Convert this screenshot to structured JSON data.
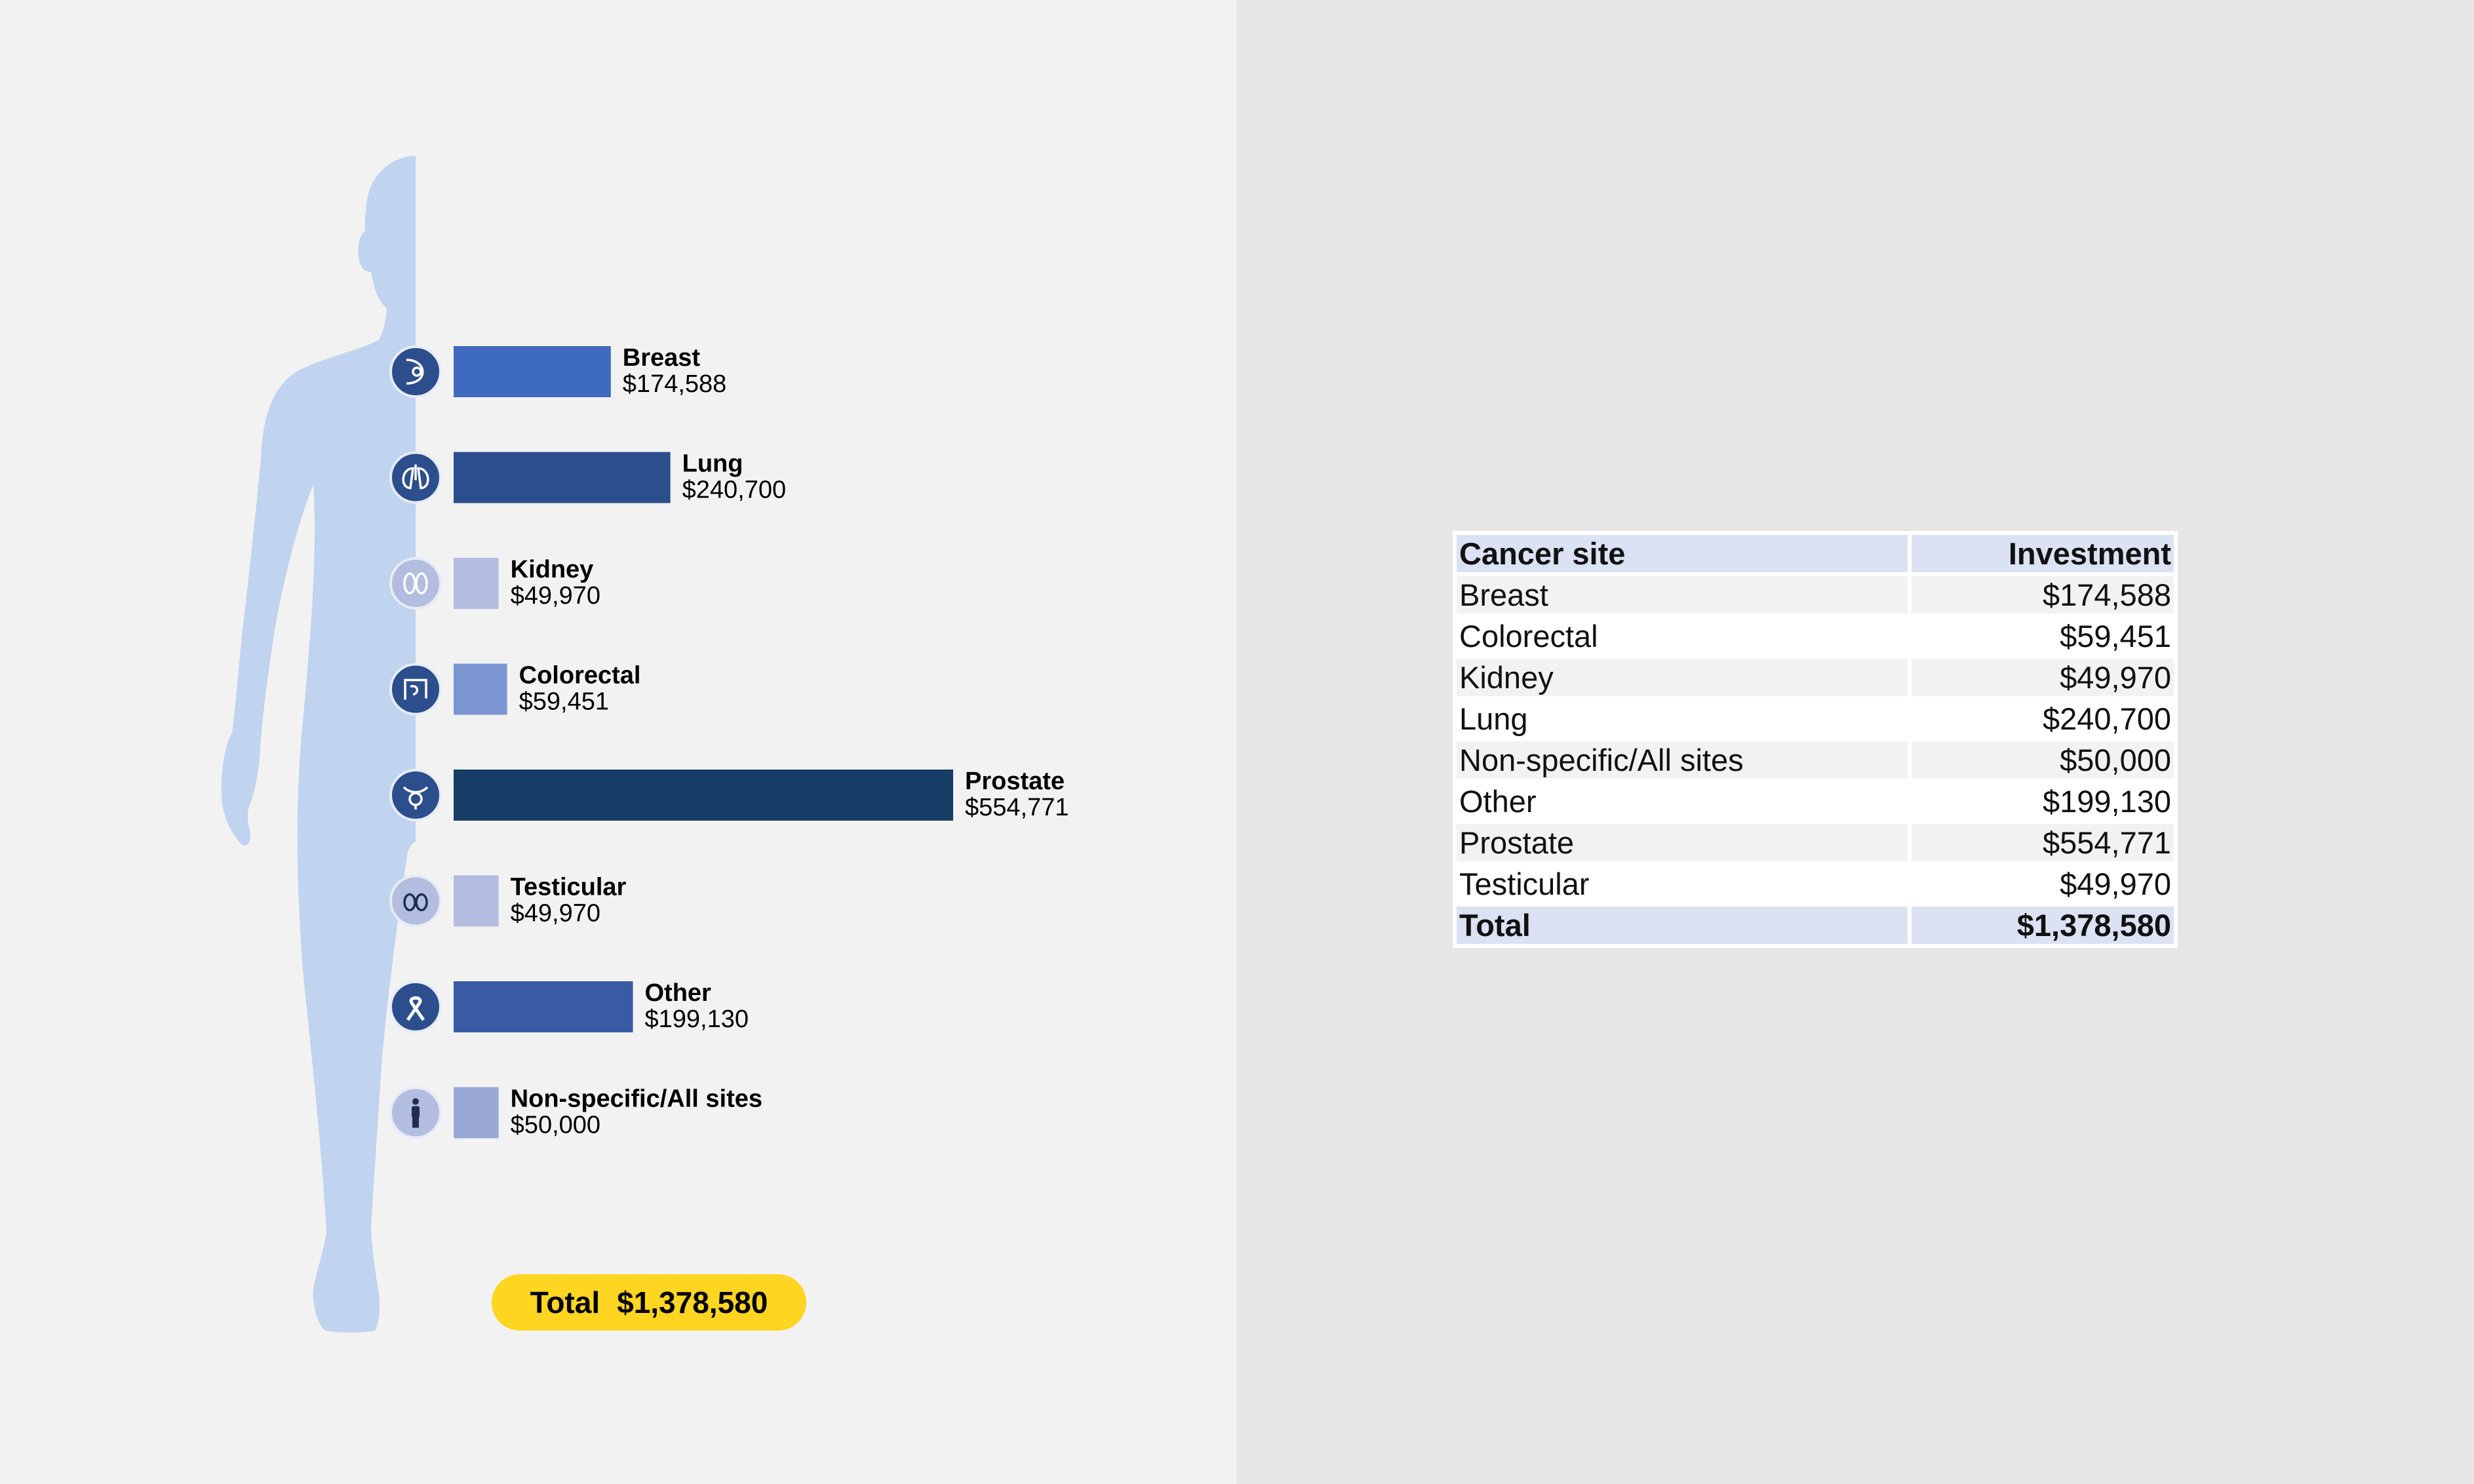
{
  "chart_data": {
    "type": "bar",
    "orientation": "horizontal",
    "categories": [
      "Breast",
      "Lung",
      "Kidney",
      "Colorectal",
      "Prostate",
      "Testicular",
      "Other",
      "Non-specific/All sites"
    ],
    "values": [
      174588,
      240700,
      49970,
      59451,
      554771,
      49970,
      199130,
      50000
    ],
    "value_labels": [
      "$174,588",
      "$240,700",
      "$49,970",
      "$59,451",
      "$554,771",
      "$49,970",
      "$199,130",
      "$50,000"
    ],
    "bar_colors": [
      "#3e6bbf",
      "#2d4e8c",
      "#b3bde0",
      "#7c96d1",
      "#163d66",
      "#b3bde0",
      "#3a5ba4",
      "#9aa8d8"
    ],
    "icons": [
      "breast-icon",
      "lungs-icon",
      "kidneys-icon",
      "intestine-icon",
      "prostate-icon",
      "testicles-icon",
      "ribbon-icon",
      "person-icon"
    ],
    "xlim": [
      0,
      554771
    ],
    "grid": false,
    "legend": "none"
  },
  "total": {
    "label": "Total",
    "value": "$1,378,580"
  },
  "table": {
    "headers": [
      "Cancer site",
      "Investment"
    ],
    "rows": [
      [
        "Breast",
        "$174,588"
      ],
      [
        "Colorectal",
        "$59,451"
      ],
      [
        "Kidney",
        "$49,970"
      ],
      [
        "Lung",
        "$240,700"
      ],
      [
        "Non-specific/All sites",
        "$50,000"
      ],
      [
        "Other",
        "$199,130"
      ],
      [
        "Prostate",
        "$554,771"
      ],
      [
        "Testicular",
        "$49,970"
      ]
    ],
    "total_row": [
      "Total",
      "$1,378,580"
    ]
  },
  "colors": {
    "left_background": "#f2f2f2",
    "right_background": "#e6e6e6",
    "silhouette": "#c0d3ef",
    "icon_circle": "#2d4e8c",
    "total_pill": "#fed520",
    "table_header": "#dae2f3"
  }
}
